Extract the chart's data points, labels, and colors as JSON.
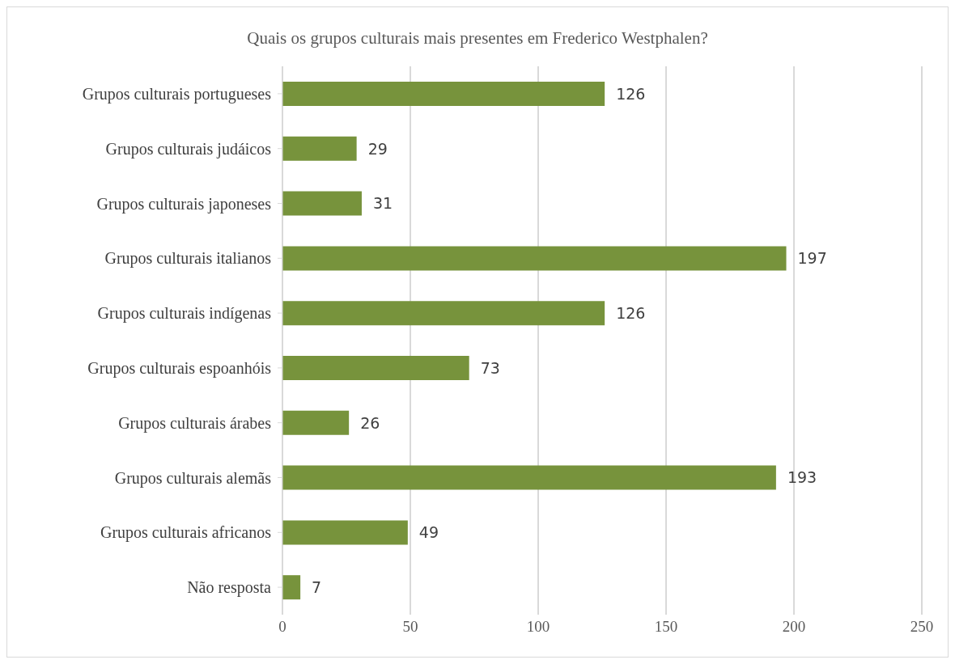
{
  "chart_data": {
    "type": "bar",
    "orientation": "horizontal",
    "title": "Quais os grupos culturais mais presentes em Frederico Westphalen?",
    "categories": [
      "Grupos culturais portugueses",
      "Grupos culturais judáicos",
      "Grupos culturais japoneses",
      "Grupos culturais italianos",
      "Grupos culturais indígenas",
      "Grupos culturais espoanhóis",
      "Grupos culturais árabes",
      "Grupos culturais alemãs",
      "Grupos culturais africanos",
      "Não resposta"
    ],
    "values": [
      126,
      29,
      31,
      197,
      126,
      73,
      26,
      193,
      49,
      7
    ],
    "color": "#77933c",
    "xlim": [
      0,
      250
    ],
    "xticks": [
      0,
      50,
      100,
      150,
      200,
      250
    ],
    "grid": "x",
    "data_labels": true
  }
}
